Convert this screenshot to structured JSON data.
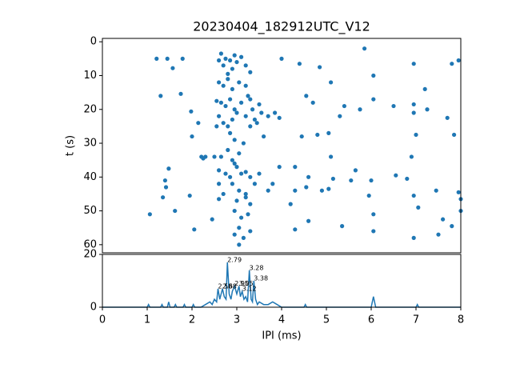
{
  "chart_data": [
    {
      "type": "scatter",
      "title": "20230404_182912UTC_V12",
      "y_label": "t (s)",
      "color": "#1f77b4",
      "x": [
        2.65,
        2.75,
        2.85,
        2.95,
        3.0,
        2.7,
        2.9,
        2.8,
        3.1,
        3.2,
        3.3,
        2.6,
        2.6,
        2.7,
        2.8,
        2.9,
        3.05,
        3.2,
        3.25,
        3.3,
        2.65,
        2.75,
        2.85,
        2.95,
        3.1,
        3.35,
        3.5,
        2.55,
        2.6,
        2.7,
        2.8,
        2.9,
        3.0,
        2.85,
        2.95,
        3.15,
        2.55,
        3.3,
        3.45,
        3.2,
        2.8,
        2.9,
        2.65,
        2.5,
        2.3,
        2.25,
        3.05,
        2.95,
        2.6,
        2.75,
        2.85,
        3.0,
        3.1,
        3.2,
        3.3,
        2.9,
        3.05,
        3.2,
        2.6,
        3.4,
        2.7,
        3.0,
        3.2,
        3.3,
        2.95,
        3.1,
        3.25,
        3.05,
        2.95,
        3.15,
        3.3,
        3.05,
        2.6,
        2.45,
        2.05,
        1.21,
        1.45,
        1.57,
        1.79,
        1.3,
        1.75,
        1.98,
        2.14,
        2.0,
        2.21,
        1.48,
        1.4,
        1.35,
        1.62,
        1.95,
        1.06,
        1.42,
        4.0,
        4.4,
        4.85,
        5.1,
        5.85,
        6.05,
        6.95,
        7.8,
        7.95,
        7.2,
        6.5,
        6.95,
        7.25,
        6.05,
        4.55,
        4.7,
        5.4,
        5.75,
        5.3,
        4.8,
        4.45,
        5.05,
        5.1,
        6.95,
        7.0,
        6.9,
        7.7,
        7.85,
        3.55,
        3.7,
        3.85,
        3.4,
        3.95,
        3.6,
        3.95,
        4.3,
        4.6,
        4.3,
        4.55,
        4.9,
        5.05,
        5.15,
        5.55,
        5.65,
        5.95,
        6.55,
        6.8,
        6.95,
        7.45,
        7.95,
        8.0,
        8.0,
        6.05,
        4.3,
        4.6,
        5.35,
        6.05,
        6.95,
        7.5,
        7.8,
        7.05,
        7.6,
        6.0,
        4.2,
        3.8,
        3.7,
        3.5
      ],
      "values": [
        3.5,
        5,
        5.5,
        4,
        6,
        7,
        8,
        9.5,
        4.5,
        7,
        9,
        5.5,
        12,
        13,
        11,
        14,
        12,
        13,
        16,
        17,
        18,
        19,
        17,
        20,
        18,
        20,
        18.5,
        17.5,
        22,
        24,
        25,
        23,
        21,
        27,
        29,
        30,
        25,
        25,
        24,
        22,
        32,
        35,
        34,
        34,
        34,
        34.5,
        33,
        36,
        38,
        39,
        40,
        37,
        39,
        38.5,
        40,
        42,
        44,
        45,
        42,
        42,
        45,
        47,
        46,
        48,
        50,
        52,
        51,
        55,
        57,
        58,
        56,
        60,
        46.5,
        52.5,
        55.5,
        5,
        5,
        7.8,
        5,
        16,
        15.4,
        20.6,
        24,
        28,
        34,
        37.5,
        41,
        46,
        50,
        45.5,
        51,
        43,
        5,
        6.5,
        7.5,
        12,
        2,
        10,
        6.5,
        6.5,
        5.5,
        14,
        19,
        18.5,
        20,
        17,
        16,
        18,
        19,
        20,
        22,
        27.5,
        28,
        27,
        34,
        21,
        27.5,
        34,
        22.5,
        27.5,
        21,
        22,
        21,
        23,
        22.5,
        28,
        37,
        37,
        40,
        44,
        43,
        44,
        43.5,
        40.5,
        41,
        38,
        45.5,
        39.5,
        40.5,
        45.5,
        44,
        44.5,
        46.5,
        50,
        51,
        55.5,
        53,
        54.5,
        56,
        58,
        57,
        54.5,
        49,
        52.5,
        41,
        48,
        42,
        44,
        39
      ],
      "xlim": [
        0,
        8
      ],
      "ylim": [
        62.4,
        -1
      ],
      "yticks": [
        0,
        10,
        20,
        30,
        40,
        50,
        60
      ]
    },
    {
      "type": "line",
      "x_label": "IPI (ms)",
      "color": "#1f77b4",
      "x": [
        0,
        1.0,
        1.03,
        1.06,
        1.3,
        1.33,
        1.36,
        1.45,
        1.48,
        1.51,
        1.6,
        1.63,
        1.66,
        1.8,
        1.83,
        1.86,
        2.0,
        2.03,
        2.06,
        2.2,
        2.3,
        2.4,
        2.45,
        2.5,
        2.55,
        2.58,
        2.62,
        2.65,
        2.68,
        2.72,
        2.76,
        2.79,
        2.83,
        2.87,
        2.9,
        2.95,
        3.0,
        3.05,
        3.08,
        3.12,
        3.16,
        3.2,
        3.24,
        3.28,
        3.32,
        3.35,
        3.38,
        3.42,
        3.46,
        3.5,
        3.6,
        3.7,
        3.8,
        3.9,
        4.0,
        4.5,
        4.53,
        4.56,
        5.0,
        5.5,
        6.0,
        6.05,
        6.1,
        6.15,
        6.5,
        7.0,
        7.03,
        7.06,
        7.5,
        8.0
      ],
      "values": [
        0,
        0,
        1,
        0,
        0,
        1,
        0,
        0,
        2,
        0,
        0,
        1,
        0,
        0,
        1,
        0,
        0,
        1,
        0,
        0,
        1,
        2,
        1,
        3,
        2,
        7,
        3,
        5,
        7,
        4,
        3,
        17,
        5,
        3,
        6,
        8,
        5,
        8,
        4,
        6,
        3,
        4,
        2,
        14,
        3,
        2,
        10,
        3,
        1,
        2,
        1,
        1,
        2,
        1,
        0,
        0,
        1,
        0,
        0,
        0,
        0,
        4,
        0,
        0,
        0,
        0,
        1,
        0,
        0,
        0
      ],
      "annotations": [
        {
          "text": "2.79",
          "x": 2.79,
          "y": 17
        },
        {
          "text": "3.28",
          "x": 3.28,
          "y": 14
        },
        {
          "text": "3.38",
          "x": 3.38,
          "y": 10
        },
        {
          "text": "2.58",
          "x": 2.58,
          "y": 7
        },
        {
          "text": "2.68",
          "x": 2.68,
          "y": 7
        },
        {
          "text": "2.95",
          "x": 2.95,
          "y": 8
        },
        {
          "text": "3.05",
          "x": 3.05,
          "y": 8
        },
        {
          "text": "3.12",
          "x": 3.12,
          "y": 6
        }
      ],
      "xlim": [
        0,
        8
      ],
      "xticks": [
        0,
        1,
        2,
        3,
        4,
        5,
        6,
        7,
        8
      ],
      "ylim": [
        0,
        20
      ],
      "yticks": [
        0,
        20
      ]
    }
  ]
}
